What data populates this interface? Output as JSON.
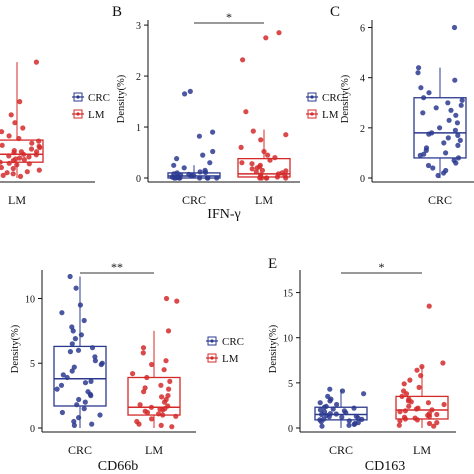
{
  "colors": {
    "crc": "#2b3a8f",
    "lm": "#d42a2a",
    "axis": "#111111",
    "sig": "#333333"
  },
  "legend_items": [
    {
      "label": "CRC",
      "color": "#2b3a8f"
    },
    {
      "label": "LM",
      "color": "#d42a2a"
    }
  ],
  "chart_data": [
    {
      "id": "A",
      "type": "box",
      "panel_letter": "",
      "title": "",
      "ylabel": "",
      "categories": [
        "LM"
      ],
      "yticks": [],
      "ylim": [
        0,
        3
      ],
      "significance": "",
      "series": [
        {
          "name": "LM",
          "color": "#d42a2a",
          "box": {
            "q1": 0.3,
            "median": 0.45,
            "q3": 0.72,
            "wmin": 0.0,
            "wmax": 2.2
          },
          "points": [
            2.2,
            1.75,
            1.45,
            1.2,
            1.05,
            0.95,
            0.88,
            0.8,
            0.75,
            0.7,
            0.66,
            0.62,
            0.58,
            0.55,
            0.52,
            0.5,
            0.48,
            0.45,
            0.42,
            0.4,
            0.38,
            0.35,
            0.33,
            0.3,
            0.28,
            0.25,
            0.22,
            0.2,
            0.18,
            0.15,
            0.12,
            0.1,
            0.08,
            0.05,
            0.03,
            0.6,
            0.44,
            0.36,
            0.27,
            0.5
          ]
        }
      ]
    },
    {
      "id": "B",
      "type": "box",
      "panel_letter": "B",
      "title": "IFN-γ",
      "ylabel": "Density(%)",
      "categories": [
        "CRC",
        "LM"
      ],
      "yticks": [
        0,
        1,
        2,
        3
      ],
      "ylim": [
        0,
        3.1
      ],
      "significance": "*",
      "series": [
        {
          "name": "CRC",
          "color": "#2b3a8f",
          "box": {
            "q1": 0.0,
            "median": 0.04,
            "q3": 0.1,
            "wmin": 0.0,
            "wmax": 0.25
          },
          "points": [
            1.7,
            1.65,
            0.9,
            0.82,
            0.52,
            0.45,
            0.38,
            0.3,
            0.25,
            0.2,
            0.15,
            0.12,
            0.1,
            0.08,
            0.06,
            0.05,
            0.04,
            0.03,
            0.02,
            0.01,
            0.0,
            0.0,
            0.0,
            0.0,
            0.0,
            0.0,
            0.0,
            0.0,
            0.07,
            0.11
          ]
        },
        {
          "name": "LM",
          "color": "#d42a2a",
          "box": {
            "q1": 0.02,
            "median": 0.08,
            "q3": 0.38,
            "wmin": 0.0,
            "wmax": 0.95
          },
          "points": [
            2.85,
            2.75,
            2.32,
            1.3,
            0.92,
            0.85,
            0.75,
            0.6,
            0.52,
            0.45,
            0.4,
            0.35,
            0.3,
            0.25,
            0.2,
            0.18,
            0.15,
            0.12,
            0.1,
            0.08,
            0.06,
            0.05,
            0.03,
            0.02,
            0.0,
            0.0,
            0.0,
            0.0,
            0.0,
            0.28,
            0.22,
            0.14
          ]
        }
      ]
    },
    {
      "id": "C",
      "type": "box",
      "panel_letter": "C",
      "title": "",
      "ylabel": "Density(%)",
      "categories": [
        "CRC"
      ],
      "yticks": [
        0,
        2,
        4,
        6
      ],
      "ylim": [
        0,
        6.3
      ],
      "significance": "",
      "series": [
        {
          "name": "CRC",
          "color": "#2b3a8f",
          "box": {
            "q1": 0.8,
            "median": 1.8,
            "q3": 3.2,
            "wmin": 0.0,
            "wmax": 4.4
          },
          "points": [
            6.0,
            4.4,
            4.2,
            3.9,
            3.6,
            3.4,
            3.2,
            3.0,
            2.8,
            2.7,
            2.5,
            2.3,
            2.2,
            2.0,
            1.9,
            1.8,
            1.7,
            1.6,
            1.5,
            1.4,
            1.3,
            1.2,
            1.1,
            1.0,
            0.9,
            0.8,
            0.7,
            0.6,
            0.5,
            0.4,
            0.3,
            0.2,
            0.1,
            2.6,
            1.75,
            2.9,
            3.1,
            0.95
          ]
        }
      ]
    },
    {
      "id": "D",
      "type": "box",
      "panel_letter": "",
      "title": "CD66b",
      "ylabel": "Density(%)",
      "categories": [
        "CRC",
        "LM"
      ],
      "yticks": [
        0,
        5,
        10
      ],
      "ylim": [
        0,
        12.2
      ],
      "significance": "**",
      "series": [
        {
          "name": "CRC",
          "color": "#2b3a8f",
          "box": {
            "q1": 1.7,
            "median": 3.8,
            "q3": 6.3,
            "wmin": 0.0,
            "wmax": 11.7
          },
          "points": [
            11.7,
            10.8,
            9.5,
            8.9,
            8.3,
            7.8,
            7.2,
            6.9,
            6.5,
            6.2,
            5.9,
            5.5,
            5.2,
            5.0,
            4.7,
            4.4,
            4.1,
            3.9,
            3.6,
            3.3,
            3.0,
            2.8,
            2.5,
            2.2,
            2.0,
            1.8,
            1.5,
            1.2,
            1.0,
            0.8,
            0.5,
            0.3,
            0.2,
            4.9,
            3.5,
            2.6,
            7.5,
            6.0
          ]
        },
        {
          "name": "LM",
          "color": "#d42a2a",
          "box": {
            "q1": 1.0,
            "median": 1.6,
            "q3": 3.9,
            "wmin": 0.0,
            "wmax": 7.5
          },
          "points": [
            10.0,
            9.8,
            7.5,
            6.2,
            5.8,
            5.2,
            4.9,
            4.5,
            4.2,
            3.9,
            3.6,
            3.3,
            3.0,
            2.8,
            2.5,
            2.2,
            2.0,
            1.8,
            1.6,
            1.5,
            1.4,
            1.3,
            1.2,
            1.1,
            1.0,
            0.9,
            0.7,
            0.5,
            0.3,
            0.2,
            0.1,
            2.4,
            1.7,
            3.1,
            1.45
          ]
        }
      ]
    },
    {
      "id": "E",
      "type": "box",
      "panel_letter": "E",
      "title": "CD163",
      "ylabel": "Density(%)",
      "categories": [
        "CRC",
        "LM"
      ],
      "yticks": [
        0,
        5,
        10,
        15
      ],
      "ylim": [
        0,
        17.5
      ],
      "significance": "*",
      "series": [
        {
          "name": "CRC",
          "color": "#2b3a8f",
          "box": {
            "q1": 0.9,
            "median": 1.5,
            "q3": 2.3,
            "wmin": 0.0,
            "wmax": 4.3
          },
          "points": [
            4.3,
            4.1,
            3.8,
            3.5,
            3.2,
            3.0,
            2.8,
            2.6,
            2.4,
            2.3,
            2.2,
            2.0,
            1.9,
            1.8,
            1.7,
            1.6,
            1.5,
            1.4,
            1.3,
            1.2,
            1.1,
            1.0,
            0.9,
            0.8,
            0.7,
            0.6,
            0.5,
            0.4,
            0.3,
            0.2,
            1.55,
            1.25,
            2.1,
            0.95
          ]
        },
        {
          "name": "LM",
          "color": "#d42a2a",
          "box": {
            "q1": 1.0,
            "median": 2.0,
            "q3": 3.5,
            "wmin": 0.0,
            "wmax": 6.8
          },
          "points": [
            13.5,
            7.2,
            6.8,
            6.4,
            5.8,
            5.3,
            4.9,
            4.5,
            4.1,
            3.8,
            3.5,
            3.2,
            3.0,
            2.8,
            2.6,
            2.4,
            2.2,
            2.0,
            1.9,
            1.8,
            1.6,
            1.5,
            1.4,
            1.3,
            1.2,
            1.1,
            1.0,
            0.9,
            0.8,
            0.6,
            0.5,
            0.3,
            0.2,
            2.1,
            2.9
          ]
        }
      ]
    }
  ]
}
